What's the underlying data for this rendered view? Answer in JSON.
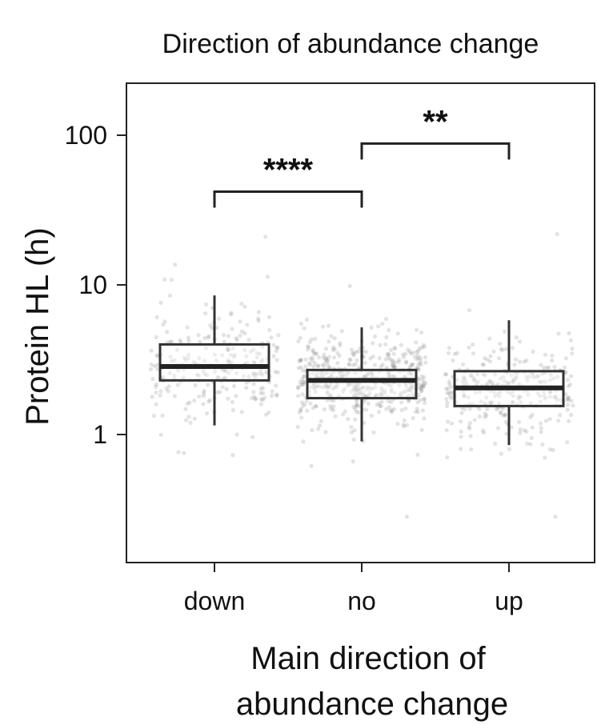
{
  "chart_data": {
    "type": "box",
    "title": "Direction of abundance change",
    "xlabel": "Main direction of abundance change",
    "xlabel_lines": [
      "Main direction of",
      "abundance change"
    ],
    "ylabel": "Protein HL (h)",
    "yscale": "log",
    "ylim": [
      0.15,
      200
    ],
    "yticks": [
      1,
      10,
      100
    ],
    "ytick_labels": [
      "1",
      "10",
      "100"
    ],
    "categories": [
      "down",
      "no",
      "up"
    ],
    "boxes": [
      {
        "category": "down",
        "whisker_low": 1.15,
        "q1": 2.3,
        "median": 2.85,
        "q3": 4.0,
        "whisker_high": 8.5
      },
      {
        "category": "no",
        "whisker_low": 0.9,
        "q1": 1.75,
        "median": 2.3,
        "q3": 2.7,
        "whisker_high": 5.2
      },
      {
        "category": "up",
        "whisker_low": 0.85,
        "q1": 1.55,
        "median": 2.05,
        "q3": 2.65,
        "whisker_high": 5.8
      }
    ],
    "significance": [
      {
        "from": "down",
        "to": "no",
        "label": "****",
        "y": 42
      },
      {
        "from": "no",
        "to": "up",
        "label": "**",
        "y": 88
      }
    ],
    "grid": false,
    "legend": "none"
  }
}
